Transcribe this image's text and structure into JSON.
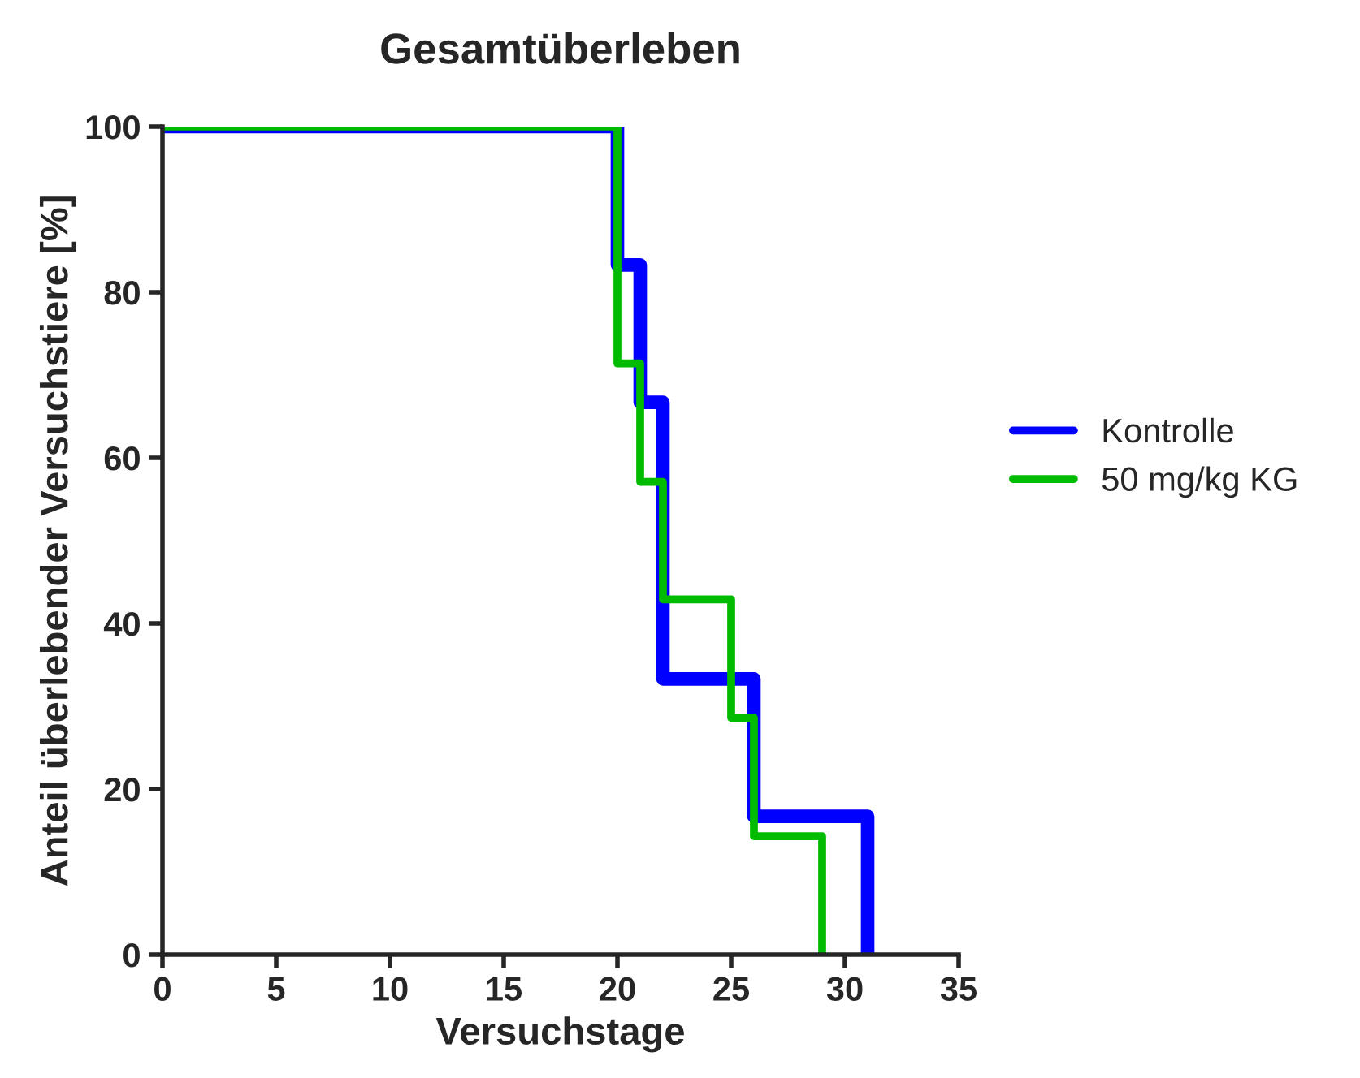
{
  "chart_data": {
    "type": "step",
    "title": "Gesamtüberleben",
    "xlabel": "Versuchstage",
    "ylabel": "Anteil überlebender Versuchstiere [%]",
    "series": [
      {
        "name": "Kontrolle",
        "color": "#0000ff",
        "x": [
          0,
          20,
          21,
          22,
          26,
          31
        ],
        "values": [
          100,
          83.3,
          66.7,
          33.3,
          16.7,
          0
        ]
      },
      {
        "name": "50 mg/kg KG",
        "color": "#00bb00",
        "x": [
          0,
          20,
          21,
          22,
          25,
          26,
          29
        ],
        "values": [
          100,
          71.4,
          57.1,
          42.9,
          28.6,
          14.3,
          0
        ]
      }
    ],
    "xlim": [
      0,
      35
    ],
    "xticks": [
      0,
      5,
      10,
      15,
      20,
      25,
      30,
      35
    ],
    "ylim": [
      0,
      100
    ],
    "yticks": [
      0,
      20,
      40,
      60,
      80,
      100
    ],
    "grid": false,
    "legend": "right"
  }
}
